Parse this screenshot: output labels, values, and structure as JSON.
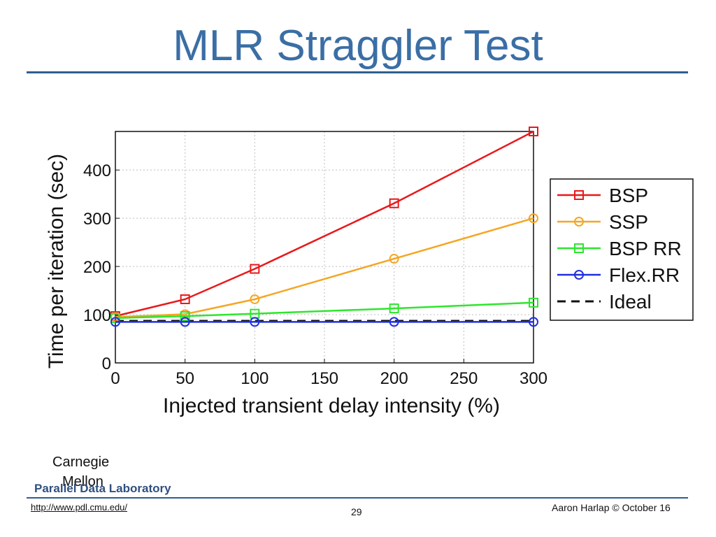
{
  "slide": {
    "title": "MLR Straggler Test",
    "logo_line1": "Carnegie",
    "logo_line2": "Mellon",
    "lab_name": "Parallel Data Laboratory",
    "url": "http://www.pdl.cmu.edu/",
    "page_number": "29",
    "author": "Aaron Harlap © October 16"
  },
  "chart_data": {
    "type": "line",
    "title": "",
    "xlabel": "Injected transient delay intensity (%)",
    "ylabel": "Time per iteration (sec)",
    "xlim": [
      0,
      300
    ],
    "ylim": [
      0,
      480
    ],
    "xticks": [
      0,
      50,
      100,
      150,
      200,
      250,
      300
    ],
    "yticks": [
      0,
      100,
      200,
      300,
      400
    ],
    "grid": true,
    "legend_position": "right",
    "series": [
      {
        "name": "BSP",
        "color": "#e8191b",
        "marker": "square",
        "dashed": false,
        "x": [
          0,
          50,
          100,
          200,
          300
        ],
        "y": [
          97,
          132,
          195,
          331,
          480
        ]
      },
      {
        "name": "SSP",
        "color": "#f5a623",
        "marker": "circle",
        "dashed": false,
        "x": [
          0,
          50,
          100,
          200,
          300
        ],
        "y": [
          95,
          101,
          132,
          216,
          300
        ]
      },
      {
        "name": "BSP RR",
        "color": "#2ee62e",
        "marker": "square",
        "dashed": false,
        "x": [
          0,
          50,
          100,
          200,
          300
        ],
        "y": [
          93,
          97,
          102,
          113,
          125
        ]
      },
      {
        "name": "Flex.RR",
        "color": "#1f2fe0",
        "marker": "circle",
        "dashed": false,
        "x": [
          0,
          50,
          100,
          200,
          300
        ],
        "y": [
          85,
          85,
          85,
          85,
          85
        ]
      },
      {
        "name": "Ideal",
        "color": "#111111",
        "marker": "none",
        "dashed": true,
        "x": [
          0,
          300
        ],
        "y": [
          87,
          87
        ]
      }
    ]
  }
}
